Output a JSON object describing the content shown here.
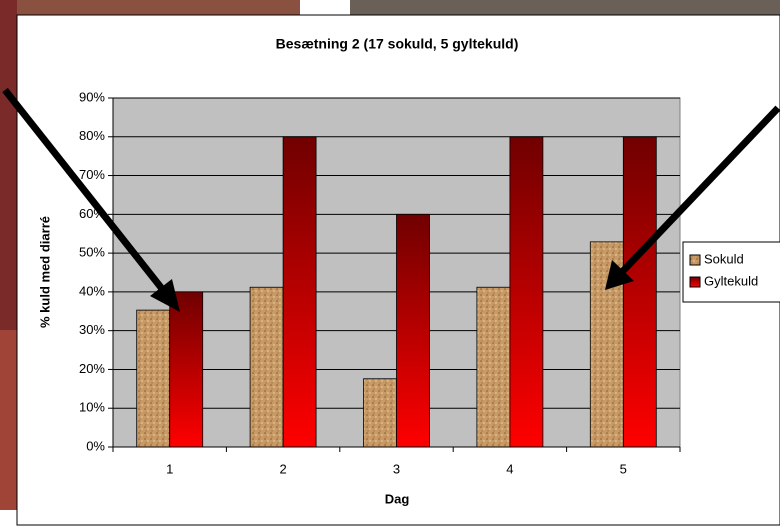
{
  "chart_data": {
    "type": "bar",
    "title": "Besætning 2 (17 sokuld, 5 gyltekuld)",
    "x_label": "Dag",
    "y_label": "% kuld med diarré",
    "categories": [
      "1",
      "2",
      "3",
      "4",
      "5"
    ],
    "series": [
      {
        "name": "Sokuld",
        "color": "#c89a66",
        "values": [
          35.3,
          41.2,
          17.6,
          41.2,
          52.9
        ]
      },
      {
        "name": "Gyltekuld",
        "color": "#ff0000",
        "values": [
          40,
          80,
          60,
          80,
          80
        ]
      }
    ],
    "ylim": [
      0,
      90
    ],
    "yticks": [
      {
        "value": 0,
        "label": "0%"
      },
      {
        "value": 10,
        "label": "10%"
      },
      {
        "value": 20,
        "label": "20%"
      },
      {
        "value": 30,
        "label": "30%"
      },
      {
        "value": 40,
        "label": "40%"
      },
      {
        "value": 50,
        "label": "50%"
      },
      {
        "value": 60,
        "label": "60%"
      },
      {
        "value": 70,
        "label": "70%"
      },
      {
        "value": 80,
        "label": "80%"
      },
      {
        "value": 90,
        "label": "90%"
      }
    ],
    "grid": true,
    "plot_background": "#c0c0c0"
  }
}
